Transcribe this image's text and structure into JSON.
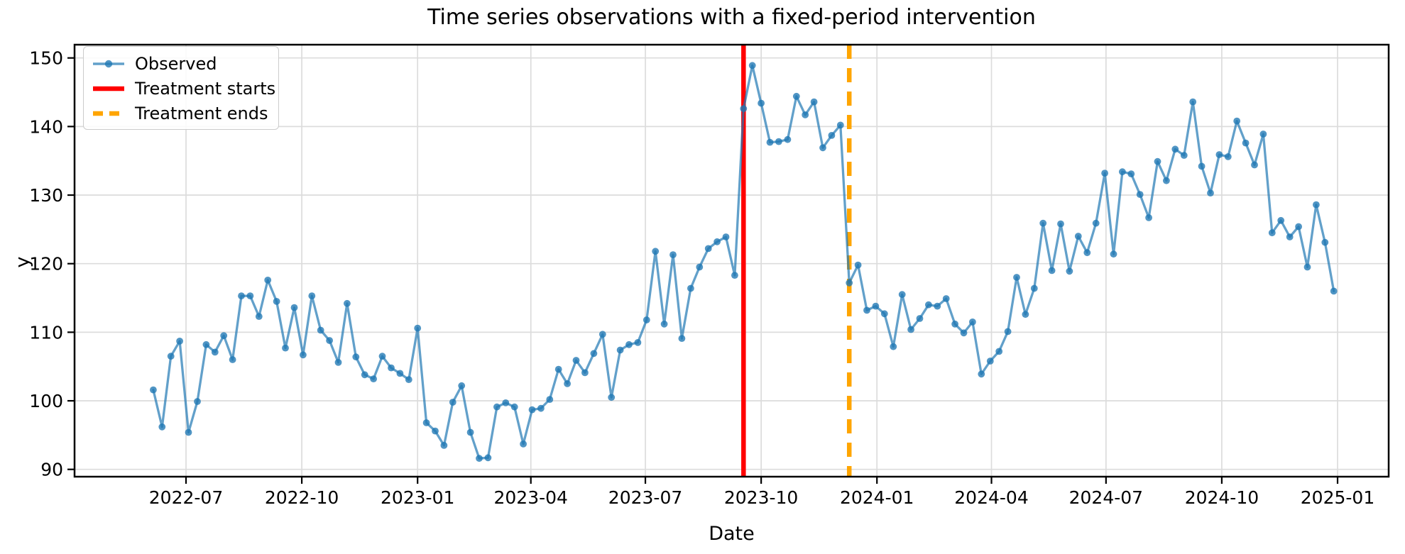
{
  "figure": {
    "title": "Time series observations with a fixed-period intervention",
    "xlabel": "Date",
    "ylabel": "y",
    "legend": [
      {
        "label": "Observed",
        "swatch": "line-with-marker",
        "color": "#1f77b4"
      },
      {
        "label": "Treatment starts",
        "swatch": "solid-line",
        "color": "#ff0000"
      },
      {
        "label": "Treatment ends",
        "swatch": "dashed-line",
        "color": "#ffa500"
      }
    ]
  },
  "chart_data": {
    "type": "line",
    "title": "Time series observations with a fixed-period intervention",
    "xlabel": "Date",
    "ylabel": "y",
    "grid": true,
    "legend_position": "upper left",
    "ylim": [
      88.9,
      151.9
    ],
    "y_ticks": [
      90,
      100,
      110,
      120,
      130,
      140,
      150
    ],
    "x_ticks": [
      {
        "label": "2022-07",
        "day": 26
      },
      {
        "label": "2022-10",
        "day": 118
      },
      {
        "label": "2023-01",
        "day": 210
      },
      {
        "label": "2023-04",
        "day": 300
      },
      {
        "label": "2023-07",
        "day": 391
      },
      {
        "label": "2023-10",
        "day": 483
      },
      {
        "label": "2024-01",
        "day": 575
      },
      {
        "label": "2024-04",
        "day": 666
      },
      {
        "label": "2024-07",
        "day": 757
      },
      {
        "label": "2024-10",
        "day": 849
      },
      {
        "label": "2025-01",
        "day": 941
      }
    ],
    "series": [
      {
        "name": "Observed",
        "color": "#1f77b4",
        "alpha": 0.7,
        "marker": "o",
        "start_date": "2022-06-05",
        "freq_days": 7,
        "n_points": 135,
        "values": [
          101.6,
          96.2,
          106.5,
          108.7,
          95.4,
          99.9,
          108.2,
          107.1,
          109.5,
          106.0,
          115.3,
          115.3,
          112.3,
          117.6,
          114.5,
          107.7,
          113.6,
          106.7,
          115.3,
          110.3,
          108.8,
          105.6,
          114.2,
          106.4,
          103.8,
          103.2,
          106.5,
          104.8,
          104.0,
          103.1,
          110.6,
          96.8,
          95.6,
          93.5,
          99.8,
          102.2,
          95.4,
          91.6,
          91.7,
          99.1,
          99.7,
          99.1,
          93.7,
          98.7,
          98.9,
          100.2,
          104.6,
          102.5,
          105.9,
          104.1,
          106.9,
          109.7,
          100.5,
          107.4,
          108.2,
          108.5,
          111.8,
          121.8,
          111.2,
          121.3,
          109.1,
          116.4,
          119.5,
          122.2,
          123.2,
          123.9,
          118.3,
          142.6,
          148.9,
          143.4,
          137.7,
          137.8,
          138.1,
          144.4,
          141.7,
          143.6,
          136.9,
          138.7,
          140.2,
          117.2,
          119.8,
          113.2,
          113.8,
          112.7,
          107.9,
          115.5,
          110.4,
          112.0,
          114.0,
          113.8,
          114.9,
          111.2,
          109.9,
          111.5,
          103.9,
          105.8,
          107.2,
          110.1,
          118.0,
          112.6,
          116.4,
          125.9,
          119.0,
          125.8,
          118.9,
          124.0,
          121.6,
          125.9,
          133.2,
          121.4,
          133.4,
          133.1,
          130.1,
          126.7,
          134.9,
          132.1,
          136.7,
          135.8,
          143.6,
          134.2,
          130.3,
          135.9,
          135.6,
          140.8,
          137.6,
          134.4,
          138.9,
          124.5,
          126.3,
          123.9,
          125.4,
          119.5,
          128.6,
          123.1,
          116.0
        ]
      }
    ],
    "events": [
      {
        "name": "Treatment starts",
        "date": "2023-09-17",
        "day": 469,
        "color": "#ff0000",
        "style": "solid"
      },
      {
        "name": "Treatment ends",
        "date": "2023-12-10",
        "day": 553,
        "color": "#ffa500",
        "style": "dashed"
      }
    ]
  }
}
